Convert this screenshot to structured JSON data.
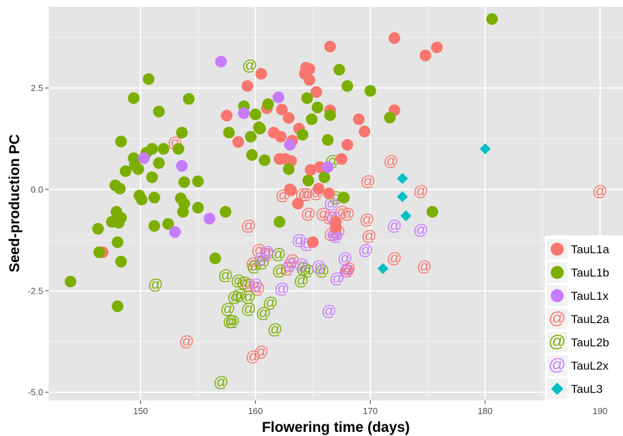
{
  "chart_data": {
    "type": "scatter",
    "title": "",
    "xlabel": "Flowering time (days)",
    "ylabel": "Seed-production PC",
    "xlim": [
      142,
      192
    ],
    "ylim": [
      -5.2,
      4.5
    ],
    "xticks": [
      150,
      160,
      170,
      180,
      190
    ],
    "xtick_labels": [
      "150",
      "160",
      "170",
      "180",
      "190"
    ],
    "yticks": [
      -5.0,
      -2.5,
      0.0,
      2.5
    ],
    "ytick_labels": [
      "-5.0",
      "-2.5",
      "0.0",
      "2.5"
    ],
    "grid": true,
    "legend_position": "bottom-right",
    "series": [
      {
        "name": "TauL1a",
        "color": "#F8766D",
        "marker": "filled-circle",
        "points": [
          [
            146.7,
            -1.55
          ],
          [
            157.5,
            1.82
          ],
          [
            158.5,
            1.17
          ],
          [
            159.3,
            2.55
          ],
          [
            160.5,
            2.85
          ],
          [
            161.0,
            2.0
          ],
          [
            161.6,
            1.4
          ],
          [
            162.3,
            1.97
          ],
          [
            162.9,
            1.76
          ],
          [
            162.2,
            1.3
          ],
          [
            163.2,
            1.2
          ],
          [
            163.8,
            1.5
          ],
          [
            164.3,
            2.85
          ],
          [
            164.4,
            3.0
          ],
          [
            164.7,
            2.97
          ],
          [
            164.7,
            2.7
          ],
          [
            165.3,
            2.4
          ],
          [
            166.5,
            3.52
          ],
          [
            166.5,
            1.95
          ],
          [
            162.1,
            0.75
          ],
          [
            162.6,
            0.75
          ],
          [
            163.1,
            0.7
          ],
          [
            164.8,
            0.48
          ],
          [
            165.6,
            0.55
          ],
          [
            165.5,
            0.02
          ],
          [
            163.1,
            -0.02
          ],
          [
            163.0,
            0.0
          ],
          [
            163.7,
            -0.35
          ],
          [
            166.4,
            -0.1
          ],
          [
            167.0,
            -0.8
          ],
          [
            167.0,
            -0.93
          ],
          [
            165.0,
            -1.3
          ],
          [
            167.5,
            0.75
          ],
          [
            168.0,
            1.1
          ],
          [
            169.0,
            1.73
          ],
          [
            169.5,
            1.43
          ],
          [
            172.1,
            3.73
          ],
          [
            172.1,
            1.95
          ],
          [
            174.8,
            3.3
          ],
          [
            175.8,
            3.5
          ]
        ]
      },
      {
        "name": "TauL1b",
        "color": "#7CAE00",
        "marker": "filled-circle",
        "points": [
          [
            143.9,
            -2.27
          ],
          [
            146.3,
            -0.97
          ],
          [
            146.4,
            -1.55
          ],
          [
            147.8,
            0.1
          ],
          [
            148.2,
            0.02
          ],
          [
            148.3,
            1.18
          ],
          [
            147.5,
            -0.8
          ],
          [
            147.9,
            -0.55
          ],
          [
            148.1,
            -0.82
          ],
          [
            148.3,
            -0.7
          ],
          [
            148.0,
            -1.3
          ],
          [
            148.3,
            -1.78
          ],
          [
            148.0,
            -2.88
          ],
          [
            148.7,
            0.45
          ],
          [
            149.4,
            0.77
          ],
          [
            149.4,
            2.25
          ],
          [
            149.5,
            0.6
          ],
          [
            149.8,
            0.5
          ],
          [
            149.9,
            -0.15
          ],
          [
            150.1,
            -0.25
          ],
          [
            150.5,
            0.9
          ],
          [
            150.7,
            2.72
          ],
          [
            151.0,
            1.0
          ],
          [
            151.0,
            0.3
          ],
          [
            151.2,
            -0.9
          ],
          [
            151.2,
            -0.2
          ],
          [
            151.6,
            1.92
          ],
          [
            151.6,
            0.65
          ],
          [
            152.0,
            1.0
          ],
          [
            152.4,
            -0.85
          ],
          [
            153.3,
            1.0
          ],
          [
            153.6,
            1.4
          ],
          [
            153.5,
            -0.22
          ],
          [
            153.8,
            -0.35
          ],
          [
            153.7,
            -0.55
          ],
          [
            153.8,
            0.18
          ],
          [
            154.2,
            2.23
          ],
          [
            155.0,
            0.2
          ],
          [
            155.0,
            -0.45
          ],
          [
            156.5,
            -1.7
          ],
          [
            157.4,
            -0.55
          ],
          [
            157.7,
            1.4
          ],
          [
            159.0,
            2.05
          ],
          [
            159.6,
            1.3
          ],
          [
            159.7,
            0.85
          ],
          [
            160.0,
            1.85
          ],
          [
            160.3,
            1.53
          ],
          [
            160.4,
            1.5
          ],
          [
            160.8,
            0.72
          ],
          [
            161.1,
            2.1
          ],
          [
            162.1,
            -0.8
          ],
          [
            162.9,
            0.5
          ],
          [
            164.1,
            1.35
          ],
          [
            164.6,
            0.22
          ],
          [
            164.9,
            1.73
          ],
          [
            165.4,
            2.02
          ],
          [
            164.5,
            2.25
          ],
          [
            166.0,
            0.3
          ],
          [
            166.5,
            1.83
          ],
          [
            166.3,
            1.22
          ],
          [
            167.3,
            2.95
          ],
          [
            167.7,
            -0.2
          ],
          [
            168.0,
            2.55
          ],
          [
            170.0,
            2.43
          ],
          [
            171.7,
            1.77
          ],
          [
            175.4,
            -0.55
          ],
          [
            180.6,
            4.2
          ]
        ]
      },
      {
        "name": "TauL1x",
        "color": "#C77CFF",
        "marker": "filled-circle",
        "points": [
          [
            150.3,
            0.77
          ],
          [
            153.0,
            -1.05
          ],
          [
            153.6,
            0.58
          ],
          [
            156.0,
            -0.72
          ],
          [
            157.0,
            3.15
          ],
          [
            159.0,
            1.88
          ],
          [
            162.0,
            2.27
          ],
          [
            163.0,
            1.1
          ],
          [
            166.3,
            0.55
          ]
        ]
      },
      {
        "name": "TauL2a",
        "color": "#F8766D",
        "marker": "at",
        "points": [
          [
            153.0,
            1.15
          ],
          [
            154.0,
            -3.75
          ],
          [
            159.4,
            -0.9
          ],
          [
            159.4,
            -2.35
          ],
          [
            159.8,
            -1.83
          ],
          [
            159.8,
            -4.12
          ],
          [
            160.2,
            -2.45
          ],
          [
            160.5,
            -4.0
          ],
          [
            160.3,
            -1.5
          ],
          [
            161.0,
            -1.6
          ],
          [
            162.4,
            -0.15
          ],
          [
            162.8,
            -1.95
          ],
          [
            163.2,
            -1.75
          ],
          [
            164.1,
            -0.12
          ],
          [
            164.4,
            -0.12
          ],
          [
            164.6,
            -0.6
          ],
          [
            165.3,
            -0.1
          ],
          [
            165.9,
            -0.6
          ],
          [
            166.5,
            -0.7
          ],
          [
            166.6,
            -1.1
          ],
          [
            167.2,
            -1.05
          ],
          [
            167.5,
            -0.55
          ],
          [
            168.0,
            -0.6
          ],
          [
            168.0,
            -2.0
          ],
          [
            168.1,
            -1.95
          ],
          [
            169.7,
            -0.75
          ],
          [
            169.9,
            -1.15
          ],
          [
            169.8,
            0.2
          ],
          [
            171.8,
            0.7
          ],
          [
            172.1,
            -1.7
          ],
          [
            174.4,
            -0.05
          ],
          [
            174.7,
            -1.9
          ],
          [
            190.0,
            -0.05
          ]
        ]
      },
      {
        "name": "TauL2b",
        "color": "#7CAE00",
        "marker": "at",
        "points": [
          [
            151.3,
            -2.35
          ],
          [
            157.0,
            -4.75
          ],
          [
            157.4,
            -2.12
          ],
          [
            157.6,
            -2.95
          ],
          [
            157.8,
            -3.25
          ],
          [
            158.0,
            -3.25
          ],
          [
            158.2,
            -2.65
          ],
          [
            158.5,
            -2.25
          ],
          [
            158.6,
            -2.6
          ],
          [
            159.0,
            -2.3
          ],
          [
            159.4,
            -2.95
          ],
          [
            159.4,
            -2.65
          ],
          [
            159.9,
            -1.9
          ],
          [
            160.6,
            -1.8
          ],
          [
            160.7,
            -3.05
          ],
          [
            161.3,
            -2.8
          ],
          [
            161.7,
            -3.45
          ],
          [
            162.0,
            -1.6
          ],
          [
            162.1,
            -2.0
          ],
          [
            164.0,
            -2.25
          ],
          [
            164.2,
            -1.95
          ],
          [
            164.5,
            -2.0
          ],
          [
            165.8,
            -2.0
          ],
          [
            166.7,
            0.7
          ],
          [
            167.0,
            -0.2
          ],
          [
            159.5,
            3.05
          ]
        ]
      },
      {
        "name": "TauL2x",
        "color": "#C77CFF",
        "marker": "at",
        "points": [
          [
            160.0,
            -2.35
          ],
          [
            160.5,
            -1.7
          ],
          [
            161.0,
            -1.55
          ],
          [
            162.3,
            -2.45
          ],
          [
            163.0,
            -1.85
          ],
          [
            163.8,
            -1.25
          ],
          [
            164.0,
            -1.85
          ],
          [
            164.5,
            -1.35
          ],
          [
            165.5,
            -1.9
          ],
          [
            166.4,
            -3.0
          ],
          [
            166.6,
            -0.35
          ],
          [
            166.8,
            -0.7
          ],
          [
            166.9,
            -1.1
          ],
          [
            167.0,
            -1.15
          ],
          [
            167.1,
            -2.2
          ],
          [
            167.8,
            -1.7
          ],
          [
            167.9,
            -2.0
          ],
          [
            169.6,
            -1.5
          ],
          [
            172.1,
            -0.9
          ],
          [
            174.4,
            -1.0
          ]
        ]
      },
      {
        "name": "TauL3",
        "color": "#00BFC4",
        "marker": "filled-diamond",
        "points": [
          [
            171.1,
            -1.95
          ],
          [
            172.8,
            0.27
          ],
          [
            172.8,
            -0.18
          ],
          [
            173.1,
            -0.65
          ],
          [
            180.0,
            1.0
          ]
        ]
      }
    ]
  }
}
